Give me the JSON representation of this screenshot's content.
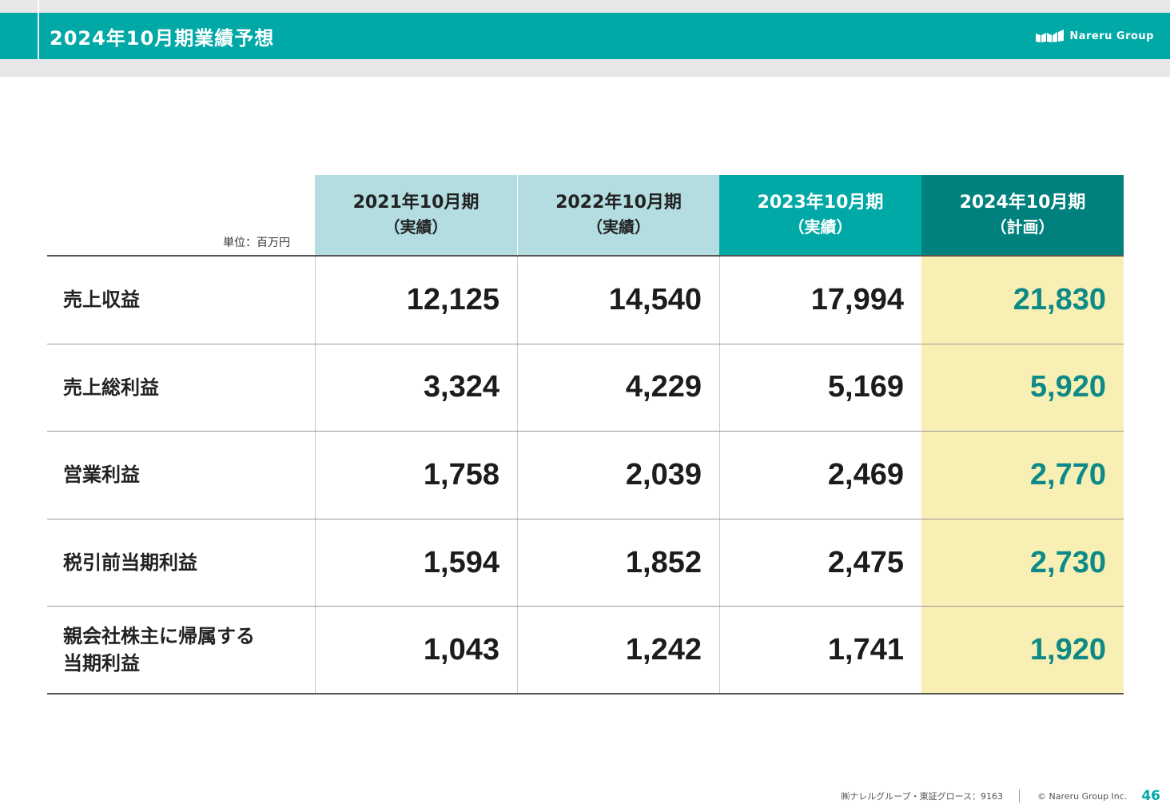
{
  "header": {
    "title": "2024年10月期業績予想",
    "brand": "Nareru Group",
    "colors": {
      "header_bg": "#00a9a6",
      "accent_dark": "#00817d",
      "light_header": "#b3dde0",
      "highlight": "#f8efb5",
      "forecast_text": "#0e8a86"
    }
  },
  "table": {
    "unit": "単位：百万円",
    "columns": [
      {
        "period": "2021年10月期",
        "status": "（実績）"
      },
      {
        "period": "2022年10月期",
        "status": "（実績）"
      },
      {
        "period": "2023年10月期",
        "status": "（実績）"
      },
      {
        "period": "2024年10月期",
        "status": "（計画）"
      }
    ],
    "rows": [
      {
        "label": "売上収益",
        "values": [
          "12,125",
          "14,540",
          "17,994",
          "21,830"
        ]
      },
      {
        "label": "売上総利益",
        "values": [
          "3,324",
          "4,229",
          "5,169",
          "5,920"
        ]
      },
      {
        "label": "営業利益",
        "values": [
          "1,758",
          "2,039",
          "2,469",
          "2,770"
        ]
      },
      {
        "label": "税引前当期利益",
        "values": [
          "1,594",
          "1,852",
          "2,475",
          "2,730"
        ]
      },
      {
        "label_line1": "親会社株主に帰属する",
        "label_line2": "当期利益",
        "values": [
          "1,043",
          "1,242",
          "1,741",
          "1,920"
        ]
      }
    ]
  },
  "footer": {
    "company": "㈱ナレルグループ・東証グロース：9163",
    "copyright": "© Nareru Group Inc.",
    "page": "46"
  }
}
